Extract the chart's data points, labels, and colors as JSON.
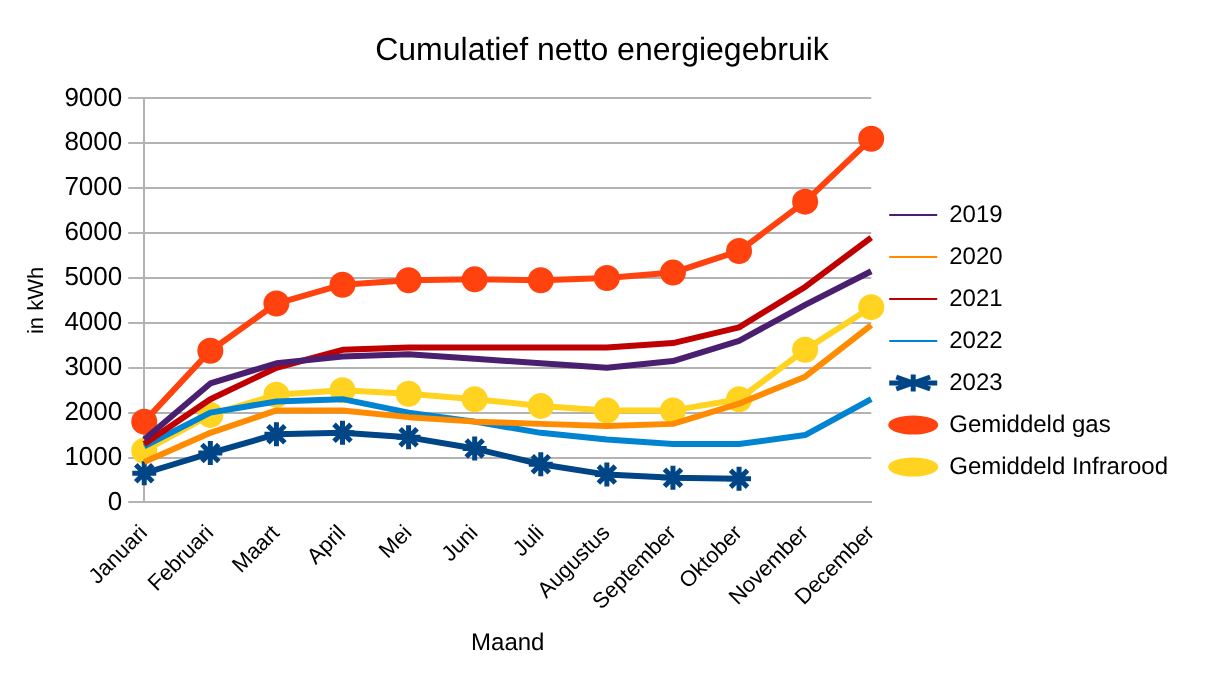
{
  "chart_data": {
    "type": "line",
    "title": "Cumulatief netto energiegebruik",
    "xlabel": "Maand",
    "ylabel": "in kWh",
    "categories": [
      "Januari",
      "Februari",
      "Maart",
      "April",
      "Mei",
      "Juni",
      "Juli",
      "Augustus",
      "September",
      "Oktober",
      "November",
      "December"
    ],
    "series": [
      {
        "name": "2019",
        "color": "#4b1f6f",
        "marker": "none",
        "values": [
          1400,
          2650,
          3100,
          3250,
          3300,
          3200,
          3100,
          3000,
          3150,
          3600,
          4400,
          5150
        ]
      },
      {
        "name": "2020",
        "color": "#ff8c00",
        "marker": "none",
        "values": [
          900,
          1550,
          2050,
          2050,
          1900,
          1800,
          1750,
          1700,
          1750,
          2200,
          2800,
          3950
        ]
      },
      {
        "name": "2021",
        "color": "#c00000",
        "marker": "none",
        "values": [
          1300,
          2300,
          3000,
          3400,
          3450,
          3450,
          3450,
          3450,
          3550,
          3900,
          4800,
          5900
        ]
      },
      {
        "name": "2022",
        "color": "#0084d1",
        "marker": "none",
        "values": [
          1250,
          2000,
          2250,
          2300,
          2000,
          1800,
          1550,
          1400,
          1300,
          1300,
          1500,
          2300
        ]
      },
      {
        "name": "2023",
        "color": "#004586",
        "marker": "cross",
        "values": [
          650,
          1100,
          1520,
          1550,
          1450,
          1200,
          850,
          620,
          550,
          530,
          null,
          null
        ]
      },
      {
        "name": "Gemiddeld gas",
        "color": "#ff420e",
        "marker": "circle",
        "values": [
          1800,
          3380,
          4430,
          4850,
          4950,
          4970,
          4950,
          5000,
          5120,
          5600,
          6700,
          8100
        ]
      },
      {
        "name": "Gemiddeld Infrarood",
        "color": "#ffd320",
        "marker": "circle",
        "values": [
          1150,
          1950,
          2400,
          2500,
          2420,
          2300,
          2150,
          2050,
          2050,
          2300,
          3400,
          4350
        ]
      }
    ],
    "ylim": [
      0,
      9000
    ],
    "yticks": [
      0,
      1000,
      2000,
      3000,
      4000,
      5000,
      6000,
      7000,
      8000,
      9000
    ],
    "grid": "y",
    "legend": "right"
  }
}
